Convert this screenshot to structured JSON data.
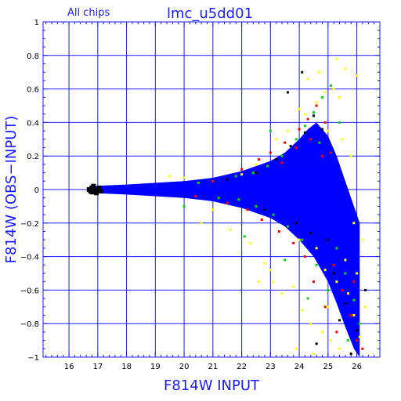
{
  "chart_data": {
    "type": "scatter",
    "title": "lmc_u5dd01",
    "subtitle": "All chips",
    "xlabel": "F814W INPUT",
    "ylabel": "F814W (OBS−INPUT)",
    "xlim": [
      15.1,
      26.8
    ],
    "ylim": [
      -1,
      1
    ],
    "xticks": [
      16,
      17,
      18,
      19,
      20,
      21,
      22,
      23,
      24,
      25,
      26
    ],
    "yticks": [
      -1,
      -0.8,
      -0.6,
      -0.4,
      -0.2,
      0,
      0.2,
      0.4,
      0.6,
      0.8,
      1
    ],
    "xtick_labels": [
      "16",
      "17",
      "18",
      "19",
      "20",
      "21",
      "22",
      "23",
      "24",
      "25",
      "26"
    ],
    "ytick_labels": [
      "−1",
      "−0.8",
      "−0.6",
      "−0.4",
      "−0.2",
      "0",
      "0.2",
      "0.4",
      "0.6",
      "0.8",
      "1"
    ],
    "grid": true,
    "legend": "none",
    "colors": {
      "axis": "#1a1aff",
      "grid": "#1a1aff",
      "text": "#1a1aff"
    },
    "series": [
      {
        "color": "#ffff00",
        "points": [
          [
            21.6,
            -0.24
          ],
          [
            22.3,
            -0.32
          ],
          [
            22.8,
            -0.44
          ],
          [
            23.1,
            -0.55
          ],
          [
            23.4,
            -0.62
          ],
          [
            23.8,
            -0.58
          ],
          [
            24.1,
            -0.72
          ],
          [
            24.4,
            -0.8
          ],
          [
            24.8,
            -0.85
          ],
          [
            25.1,
            -0.9
          ],
          [
            25.4,
            -0.95
          ],
          [
            25.7,
            -0.62
          ],
          [
            25.9,
            -0.75
          ],
          [
            26.1,
            -0.88
          ],
          [
            26.3,
            -0.7
          ],
          [
            25.3,
            -0.55
          ],
          [
            24.9,
            -0.48
          ],
          [
            24.6,
            -0.35
          ],
          [
            25.6,
            -0.42
          ],
          [
            26.0,
            -0.5
          ],
          [
            24.2,
            0.45
          ],
          [
            24.6,
            0.52
          ],
          [
            24.9,
            0.58
          ],
          [
            25.2,
            0.6
          ],
          [
            25.4,
            0.55
          ],
          [
            25.6,
            0.72
          ],
          [
            25.3,
            0.78
          ],
          [
            26.0,
            0.68
          ],
          [
            24.3,
            0.66
          ],
          [
            24.0,
            0.48
          ],
          [
            23.6,
            0.35
          ],
          [
            23.2,
            0.3
          ],
          [
            22.5,
            0.15
          ],
          [
            22.0,
            0.09
          ],
          [
            25.8,
            0.2
          ],
          [
            25.9,
            -0.2
          ],
          [
            26.2,
            -0.3
          ],
          [
            25.5,
            0.3
          ],
          [
            25.0,
            0.35
          ],
          [
            24.7,
            0.7
          ],
          [
            20.6,
            -0.2
          ],
          [
            21.0,
            -0.12
          ],
          [
            19.5,
            0.08
          ],
          [
            20.0,
            0.07
          ],
          [
            22.6,
            -0.55
          ],
          [
            23.0,
            -0.48
          ],
          [
            23.9,
            -0.95
          ],
          [
            24.5,
            -0.98
          ],
          [
            25.0,
            -0.7
          ],
          [
            24.0,
            -0.3
          ]
        ]
      },
      {
        "color": "#ff0000",
        "points": [
          [
            22.0,
            0.12
          ],
          [
            22.6,
            0.18
          ],
          [
            23.0,
            0.22
          ],
          [
            23.5,
            0.28
          ],
          [
            24.0,
            0.36
          ],
          [
            24.3,
            0.42
          ],
          [
            24.6,
            0.5
          ],
          [
            24.9,
            0.4
          ],
          [
            25.2,
            -0.45
          ],
          [
            25.5,
            -0.6
          ],
          [
            25.8,
            -0.75
          ],
          [
            26.0,
            -0.9
          ],
          [
            25.3,
            -0.85
          ],
          [
            24.9,
            -0.7
          ],
          [
            24.5,
            -0.55
          ],
          [
            24.2,
            -0.4
          ],
          [
            23.8,
            -0.32
          ],
          [
            23.3,
            -0.25
          ],
          [
            22.7,
            -0.18
          ],
          [
            22.2,
            -0.12
          ],
          [
            21.5,
            -0.08
          ],
          [
            21.0,
            0.05
          ],
          [
            20.4,
            -0.04
          ],
          [
            25.9,
            -0.55
          ],
          [
            26.2,
            -0.95
          ],
          [
            25.1,
            0.22
          ],
          [
            24.8,
            0.2
          ],
          [
            24.4,
            0.3
          ],
          [
            23.9,
            0.25
          ],
          [
            23.4,
            0.16
          ]
        ]
      },
      {
        "color": "#00dd00",
        "points": [
          [
            21.8,
            0.08
          ],
          [
            22.4,
            0.1
          ],
          [
            22.9,
            0.14
          ],
          [
            23.4,
            0.2
          ],
          [
            23.9,
            0.3
          ],
          [
            24.2,
            0.38
          ],
          [
            24.5,
            0.46
          ],
          [
            24.8,
            0.55
          ],
          [
            25.1,
            0.62
          ],
          [
            25.3,
            -0.35
          ],
          [
            25.6,
            -0.5
          ],
          [
            25.9,
            -0.66
          ],
          [
            26.1,
            -0.8
          ],
          [
            25.0,
            -0.6
          ],
          [
            24.6,
            -0.45
          ],
          [
            24.1,
            -0.3
          ],
          [
            23.6,
            -0.22
          ],
          [
            23.1,
            -0.15
          ],
          [
            22.5,
            -0.1
          ],
          [
            21.9,
            -0.06
          ],
          [
            21.2,
            -0.05
          ],
          [
            20.5,
            0.04
          ],
          [
            25.7,
            -0.9
          ],
          [
            24.3,
            -0.65
          ],
          [
            23.5,
            -0.42
          ],
          [
            22.1,
            -0.28
          ],
          [
            24.7,
            0.28
          ],
          [
            25.4,
            0.4
          ],
          [
            23.0,
            0.35
          ],
          [
            20.0,
            -0.1
          ]
        ]
      },
      {
        "color": "#000000",
        "points": [
          [
            16.7,
            0.0
          ],
          [
            16.8,
            0.01
          ],
          [
            16.9,
            -0.01
          ],
          [
            17.0,
            0.0
          ],
          [
            16.85,
            0.02
          ],
          [
            16.95,
            -0.02
          ],
          [
            17.05,
            0.01
          ],
          [
            16.75,
            -0.01
          ],
          [
            17.1,
            -0.01
          ],
          [
            16.8,
            -0.015
          ],
          [
            23.2,
            0.18
          ],
          [
            23.7,
            0.26
          ],
          [
            24.2,
            0.34
          ],
          [
            24.5,
            0.44
          ],
          [
            24.8,
            0.36
          ],
          [
            25.2,
            -0.5
          ],
          [
            25.6,
            -0.68
          ],
          [
            26.0,
            -0.84
          ],
          [
            25.0,
            -0.3
          ],
          [
            24.4,
            -0.26
          ],
          [
            23.9,
            -0.2
          ],
          [
            22.8,
            -0.12
          ],
          [
            23.6,
            0.58
          ],
          [
            24.1,
            0.7
          ],
          [
            25.8,
            -0.98
          ],
          [
            22.5,
            0.1
          ],
          [
            21.5,
            0.06
          ],
          [
            26.3,
            -0.6
          ],
          [
            25.4,
            -0.78
          ],
          [
            24.6,
            -0.92
          ]
        ]
      }
    ],
    "blue_band": {
      "color": "#0000ff",
      "center": [
        [
          16.7,
          0.0
        ],
        [
          18.0,
          0.0
        ],
        [
          20.0,
          0.0
        ],
        [
          22.0,
          0.0
        ],
        [
          23.0,
          0.0
        ],
        [
          24.0,
          0.0
        ],
        [
          25.0,
          -0.02
        ],
        [
          25.6,
          -0.05
        ],
        [
          26.1,
          -0.1
        ]
      ],
      "upper": [
        [
          16.7,
          0.02
        ],
        [
          18.0,
          0.03
        ],
        [
          20.0,
          0.05
        ],
        [
          21.0,
          0.07
        ],
        [
          22.0,
          0.11
        ],
        [
          23.0,
          0.17
        ],
        [
          23.5,
          0.22
        ],
        [
          24.0,
          0.3
        ],
        [
          24.3,
          0.36
        ],
        [
          24.6,
          0.4
        ],
        [
          25.0,
          0.32
        ],
        [
          25.3,
          0.2
        ],
        [
          25.6,
          0.05
        ],
        [
          25.9,
          -0.1
        ],
        [
          26.1,
          -0.2
        ]
      ],
      "lower": [
        [
          16.7,
          -0.02
        ],
        [
          18.0,
          -0.03
        ],
        [
          20.0,
          -0.05
        ],
        [
          21.0,
          -0.07
        ],
        [
          22.0,
          -0.11
        ],
        [
          23.0,
          -0.17
        ],
        [
          23.5,
          -0.22
        ],
        [
          24.0,
          -0.3
        ],
        [
          24.5,
          -0.4
        ],
        [
          25.0,
          -0.55
        ],
        [
          25.3,
          -0.68
        ],
        [
          25.6,
          -0.82
        ],
        [
          25.9,
          -0.95
        ],
        [
          26.1,
          -1.0
        ]
      ]
    }
  }
}
